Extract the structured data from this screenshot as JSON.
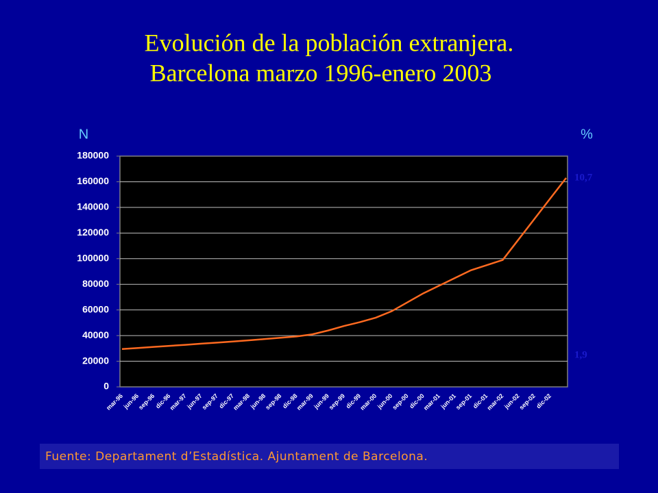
{
  "chart_data": {
    "type": "line",
    "title": "Evolución de la población extranjera.",
    "subtitle": "Barcelona marzo 1996-enero 2003",
    "y_label": "N",
    "y2_label": "%",
    "annotations": [
      "10,7",
      "1,9"
    ],
    "source": "Fuente: Departament d’Estadística. Ajuntament de Barcelona.",
    "categories": [
      "mar-96",
      "jun-96",
      "sep-96",
      "dic-96",
      "mar-97",
      "jun-97",
      "sep-97",
      "dic-97",
      "mar-98",
      "jun-98",
      "sep-98",
      "dic-98",
      "mar-99",
      "jun-99",
      "sep-99",
      "dic-99",
      "mar-00",
      "jun-00",
      "sep-00",
      "dic-00",
      "mar-01",
      "jun-01",
      "sep-01",
      "dic-01",
      "mar-02",
      "jun-02",
      "sep-02",
      "dic-02",
      null
    ],
    "series": [
      {
        "name": "N",
        "color": "#ff6a20",
        "values": [
          29500,
          30300,
          31200,
          32000,
          32800,
          33700,
          34500,
          35400,
          36300,
          37300,
          38300,
          39300,
          41000,
          44000,
          47500,
          50500,
          54000,
          59000,
          66000,
          73000,
          79000,
          85000,
          91000,
          95000,
          99000,
          115000,
          131000,
          147000,
          163000
        ]
      }
    ],
    "ylim": [
      0,
      180000
    ],
    "yticks": [
      0,
      20000,
      40000,
      60000,
      80000,
      100000,
      120000,
      140000,
      160000,
      180000
    ],
    "grid": true
  }
}
